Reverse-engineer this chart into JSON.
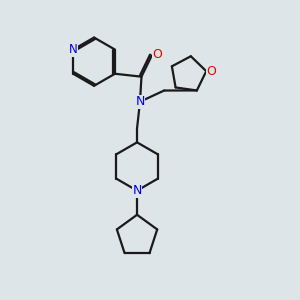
{
  "background_color": "#dde5e8",
  "bond_color": "#1a1a1a",
  "nitrogen_color": "#0000ee",
  "oxygen_color": "#ee0000",
  "bond_width": 1.6,
  "figsize": [
    3.0,
    3.0
  ],
  "dpi": 100,
  "xlim": [
    0,
    10
  ],
  "ylim": [
    0,
    10
  ]
}
